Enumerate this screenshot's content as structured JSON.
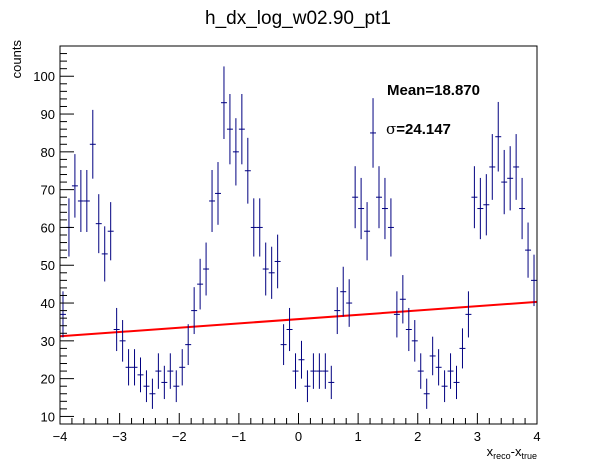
{
  "chart_data": {
    "type": "scatter",
    "title": "h_dx_log_w02.90_pt1",
    "xlabel_main": "x",
    "xlabel_sub1": "reco",
    "xlabel_mid": "-x",
    "xlabel_sub2": "true",
    "ylabel": "counts",
    "xlim": [
      -4,
      4
    ],
    "ylim": [
      8,
      108
    ],
    "xticks": [
      -4,
      -3,
      -2,
      -1,
      0,
      1,
      2,
      3,
      4
    ],
    "yticks": [
      10,
      20,
      30,
      40,
      50,
      60,
      70,
      80,
      90,
      100
    ],
    "grid": false,
    "annotations": {
      "mean": "Mean=18.870",
      "sigma_symbol": "σ",
      "sigma_value": "=24.147"
    },
    "fit_line": {
      "x": [
        -4,
        4
      ],
      "y": [
        31.2,
        40.3
      ],
      "color": "#ff0000"
    },
    "marker_color": "#000080",
    "bin_half_width": 0.05,
    "series": [
      {
        "x": [
          -3.95,
          -3.85,
          -3.75,
          -3.65,
          -3.55,
          -3.45,
          -3.35,
          -3.25,
          -3.15,
          -3.05,
          -2.95,
          -2.85,
          -2.75,
          -2.65,
          -2.55,
          -2.45,
          -2.35,
          -2.25,
          -2.15,
          -2.05,
          -1.95,
          -1.85,
          -1.75,
          -1.65,
          -1.55,
          -1.45,
          -1.35,
          -1.25,
          -1.15,
          -1.05,
          -0.95,
          -0.85,
          -0.75,
          -0.65,
          -0.55,
          -0.45,
          -0.35,
          -0.25,
          -0.15,
          -0.05,
          0.05,
          0.15,
          0.25,
          0.35,
          0.45,
          0.55,
          0.65,
          0.75,
          0.85,
          0.95,
          1.05,
          1.15,
          1.25,
          1.35,
          1.45,
          1.55,
          1.65,
          1.75,
          1.85,
          1.95,
          2.05,
          2.15,
          2.25,
          2.35,
          2.45,
          2.55,
          2.65,
          2.75,
          2.85,
          2.95,
          3.05,
          3.15,
          3.25,
          3.35,
          3.45,
          3.55,
          3.65,
          3.75,
          3.85,
          3.95
        ],
        "y": [
          37,
          60,
          71,
          67,
          67,
          82,
          61,
          53,
          59,
          33,
          30,
          23,
          23,
          21,
          18,
          16,
          22,
          19,
          22,
          18,
          23,
          29,
          38,
          45,
          49,
          67,
          69,
          93,
          86,
          80,
          86,
          75,
          60,
          60,
          49,
          48,
          51,
          29,
          33,
          22,
          25,
          18,
          22,
          22,
          22,
          19,
          38,
          43,
          40,
          68,
          65,
          59,
          85,
          68,
          65,
          60,
          37,
          41,
          33,
          30,
          22,
          16,
          26,
          23,
          18,
          22,
          19,
          28,
          37,
          68,
          65,
          66,
          76,
          84,
          72,
          73,
          76,
          65,
          54,
          46
        ],
        "err": [
          6.1,
          7.7,
          8.4,
          8.2,
          8.2,
          9.1,
          7.8,
          7.3,
          7.7,
          5.7,
          5.5,
          4.8,
          4.8,
          4.6,
          4.2,
          4.0,
          4.7,
          4.4,
          4.7,
          4.2,
          4.8,
          5.4,
          6.2,
          6.7,
          7.0,
          8.2,
          8.3,
          9.6,
          9.3,
          8.9,
          9.3,
          8.7,
          7.7,
          7.7,
          7.0,
          6.9,
          7.1,
          5.4,
          5.7,
          4.7,
          5.0,
          4.2,
          4.7,
          4.7,
          4.7,
          4.4,
          6.2,
          6.6,
          6.3,
          8.2,
          8.1,
          7.7,
          9.2,
          8.2,
          8.1,
          7.7,
          6.1,
          6.4,
          5.7,
          5.5,
          4.7,
          4.0,
          5.1,
          4.8,
          4.2,
          4.7,
          4.4,
          5.3,
          6.1,
          8.2,
          8.1,
          8.1,
          8.7,
          9.2,
          8.5,
          8.5,
          8.7,
          8.1,
          7.3,
          6.8
        ]
      }
    ]
  }
}
